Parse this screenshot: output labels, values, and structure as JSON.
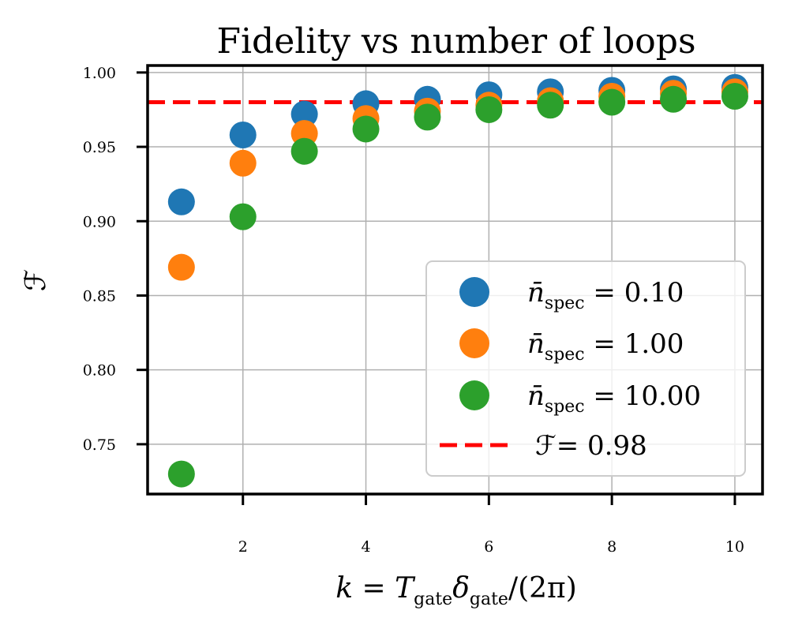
{
  "chart_data": {
    "type": "scatter",
    "title": "Fidelity vs number of loops",
    "xlabel": {
      "prefix": "k = T",
      "sub1": "gate",
      "mid": "δ",
      "sub2": "gate",
      "suffix": "/(2π)"
    },
    "ylabel": "ℱ",
    "xlim": [
      0.45,
      10.45
    ],
    "ylim": [
      0.7165,
      1.0047
    ],
    "xticks": [
      2,
      4,
      6,
      8,
      10
    ],
    "xtick_labels": [
      "2",
      "4",
      "6",
      "8",
      "10"
    ],
    "yticks": [
      0.75,
      0.8,
      0.85,
      0.9,
      0.95,
      1.0
    ],
    "ytick_labels": [
      "0.75",
      "0.80",
      "0.85",
      "0.90",
      "0.95",
      "1.00"
    ],
    "grid": true,
    "x": [
      1,
      2,
      3,
      4,
      5,
      6,
      7,
      8,
      9,
      10
    ],
    "series": [
      {
        "name": "n̄spec = 0.10",
        "legend_prefix": "n̄",
        "legend_sub": "spec",
        "legend_value": "= 0.10",
        "color": "#1f77b4",
        "values": [
          0.913,
          0.958,
          0.972,
          0.979,
          0.982,
          0.985,
          0.987,
          0.988,
          0.989,
          0.99
        ]
      },
      {
        "name": "n̄spec = 1.00",
        "legend_prefix": "n̄",
        "legend_sub": "spec",
        "legend_value": "= 1.00",
        "color": "#ff7f0e",
        "values": [
          0.869,
          0.939,
          0.959,
          0.969,
          0.974,
          0.978,
          0.981,
          0.984,
          0.986,
          0.987
        ]
      },
      {
        "name": "n̄spec = 10.00",
        "legend_prefix": "n̄",
        "legend_sub": "spec",
        "legend_value": "= 10.00",
        "color": "#2ca02c",
        "values": [
          0.73,
          0.903,
          0.947,
          0.962,
          0.97,
          0.975,
          0.978,
          0.98,
          0.982,
          0.984
        ]
      }
    ],
    "threshold": {
      "value": 0.98,
      "label": "ℱ= 0.98",
      "color": "#ff0000"
    },
    "legend_position": "lower-right"
  }
}
